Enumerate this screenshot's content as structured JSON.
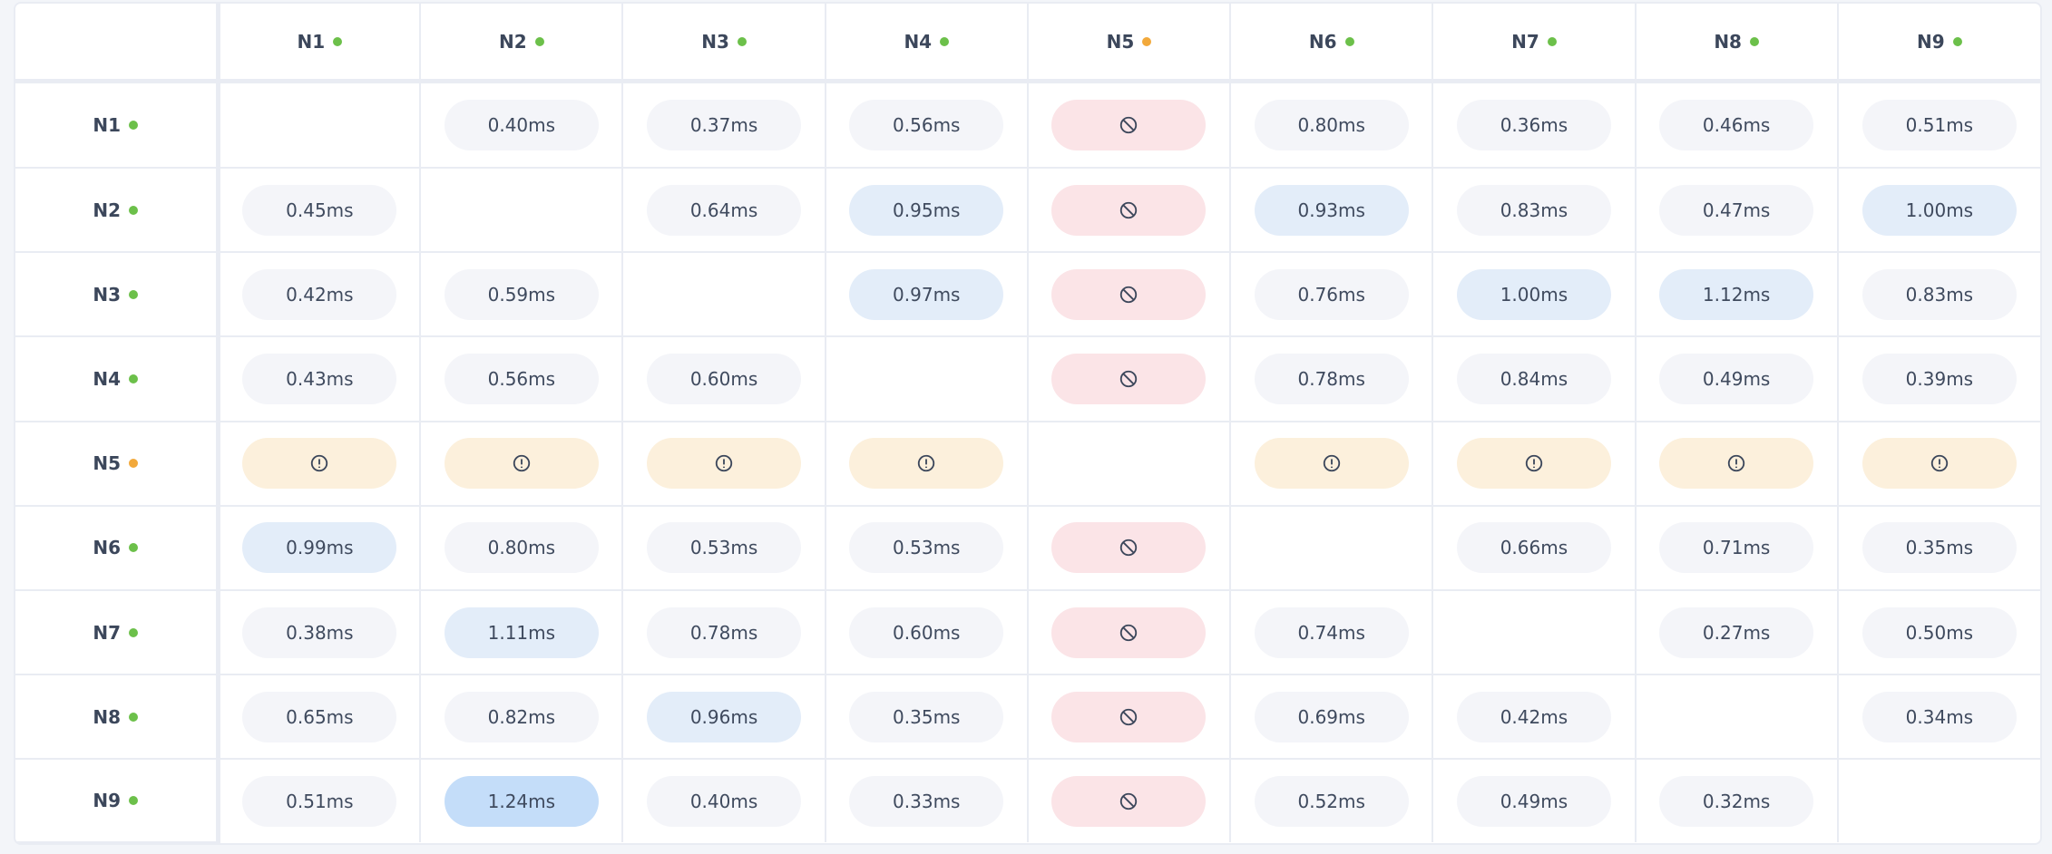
{
  "colors": {
    "online": "#6cc04a",
    "degraded": "#f2a93b",
    "normal": "#f4f5f9",
    "elevated": "#e3edf9",
    "high": "#c4ddf9",
    "blocked": "#fbe4e7",
    "warning": "#fcf0dc",
    "text": "#3c475b"
  },
  "nodes": [
    {
      "label": "N1",
      "status": "online"
    },
    {
      "label": "N2",
      "status": "online"
    },
    {
      "label": "N3",
      "status": "online"
    },
    {
      "label": "N4",
      "status": "online"
    },
    {
      "label": "N5",
      "status": "degraded"
    },
    {
      "label": "N6",
      "status": "online"
    },
    {
      "label": "N7",
      "status": "online"
    },
    {
      "label": "N8",
      "status": "online"
    },
    {
      "label": "N9",
      "status": "online"
    }
  ],
  "matrix": [
    [
      null,
      "0.40ms",
      "0.37ms",
      "0.56ms",
      "blocked",
      "0.80ms",
      "0.36ms",
      "0.46ms",
      "0.51ms"
    ],
    [
      "0.45ms",
      null,
      "0.64ms",
      "0.95ms",
      "blocked",
      "0.93ms",
      "0.83ms",
      "0.47ms",
      "1.00ms"
    ],
    [
      "0.42ms",
      "0.59ms",
      null,
      "0.97ms",
      "blocked",
      "0.76ms",
      "1.00ms",
      "1.12ms",
      "0.83ms"
    ],
    [
      "0.43ms",
      "0.56ms",
      "0.60ms",
      null,
      "blocked",
      "0.78ms",
      "0.84ms",
      "0.49ms",
      "0.39ms"
    ],
    [
      "warning",
      "warning",
      "warning",
      "warning",
      null,
      "warning",
      "warning",
      "warning",
      "warning"
    ],
    [
      "0.99ms",
      "0.80ms",
      "0.53ms",
      "0.53ms",
      "blocked",
      null,
      "0.66ms",
      "0.71ms",
      "0.35ms"
    ],
    [
      "0.38ms",
      "1.11ms",
      "0.78ms",
      "0.60ms",
      "blocked",
      "0.74ms",
      null,
      "0.27ms",
      "0.50ms"
    ],
    [
      "0.65ms",
      "0.82ms",
      "0.96ms",
      "0.35ms",
      "blocked",
      "0.69ms",
      "0.42ms",
      null,
      "0.34ms"
    ],
    [
      "0.51ms",
      "1.24ms",
      "0.40ms",
      "0.33ms",
      "blocked",
      "0.52ms",
      "0.49ms",
      "0.32ms",
      null
    ]
  ],
  "icons": {
    "blocked": "no-entry-icon",
    "warning": "exclamation-circle-icon"
  }
}
